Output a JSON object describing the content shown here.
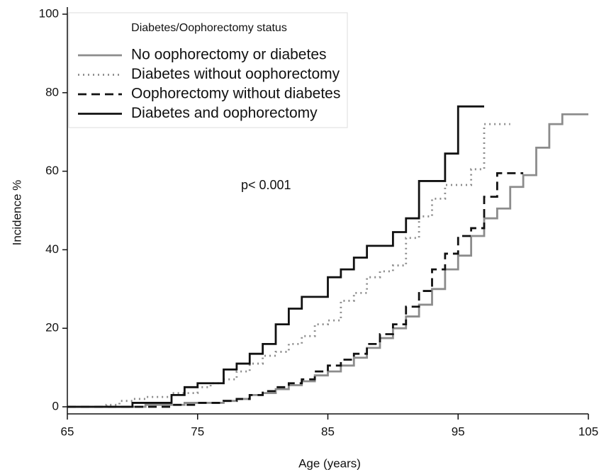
{
  "chart_data": {
    "type": "line",
    "step": "post",
    "x_label": "Age (years)",
    "y_label": "Incidence %",
    "legend_title": "Diabetes/Oophorectomy status",
    "legend_position": "upper left",
    "annotation": "p< 0.001",
    "xlim": [
      65,
      105
    ],
    "xticks": [
      65,
      75,
      85,
      95,
      105
    ],
    "ylim": [
      0,
      100
    ],
    "yticks": [
      0,
      20,
      40,
      60,
      80,
      100
    ],
    "grid": false,
    "series": [
      {
        "name": "No oophorectomy or diabetes",
        "color": "#8c8c8c",
        "dash": "solid",
        "x": [
          65,
          71,
          74,
          77,
          78,
          79,
          80,
          81,
          82,
          83,
          84,
          85,
          86,
          87,
          88,
          89,
          90,
          91,
          92,
          93,
          94,
          95,
          96,
          97,
          98,
          99,
          100,
          101,
          102,
          103,
          105
        ],
        "values": [
          0,
          0.5,
          1,
          1.5,
          2,
          3,
          3.5,
          4.5,
          5.5,
          6.5,
          8,
          9,
          10.5,
          12.5,
          15,
          17.5,
          20,
          23,
          26,
          30,
          35,
          38.5,
          43.5,
          48,
          50.5,
          56,
          59,
          66,
          72,
          74.5,
          74.5
        ]
      },
      {
        "name": "Diabetes without oophorectomy",
        "color": "#8c8c8c",
        "dash": "dotted",
        "x": [
          65,
          68,
          69,
          70,
          71,
          73,
          75,
          76,
          77,
          78,
          79,
          80,
          81,
          82,
          83,
          84,
          85,
          86,
          87,
          88,
          89,
          90,
          91,
          92,
          93,
          94,
          96,
          97,
          99
        ],
        "values": [
          0,
          0.5,
          1.5,
          2,
          2.5,
          3.5,
          5,
          6,
          7,
          9,
          11,
          13,
          14,
          16,
          18,
          21,
          22,
          27,
          29,
          33,
          34.5,
          36,
          43,
          48.5,
          53,
          56.5,
          60.5,
          72,
          72
        ]
      },
      {
        "name": "Oophorectomy without diabetes",
        "color": "#111111",
        "dash": "dashed",
        "x": [
          65,
          73,
          75,
          77,
          78,
          79,
          80,
          81,
          82,
          83,
          84,
          85,
          86,
          87,
          88,
          89,
          90,
          91,
          92,
          93,
          94,
          95,
          96,
          97,
          98,
          100
        ],
        "values": [
          0,
          0.5,
          1,
          1.5,
          2,
          3,
          4,
          5,
          6,
          7,
          9,
          10.5,
          12,
          13.5,
          16,
          18.5,
          21,
          25.5,
          29.5,
          35,
          39,
          43.5,
          45.5,
          53.5,
          59.5,
          59.5
        ]
      },
      {
        "name": "Diabetes and oophorectomy",
        "color": "#111111",
        "dash": "solid",
        "x": [
          65,
          70,
          73,
          74,
          75,
          77,
          78,
          79,
          80,
          81,
          82,
          83,
          85,
          86,
          87,
          88,
          90,
          91,
          92,
          94,
          95,
          97
        ],
        "values": [
          0,
          1,
          3,
          5,
          6,
          9.5,
          11,
          13.5,
          16,
          21,
          25,
          28,
          33,
          35,
          38,
          41,
          44.5,
          48,
          57.5,
          64.5,
          76.5,
          76.5
        ]
      }
    ]
  }
}
